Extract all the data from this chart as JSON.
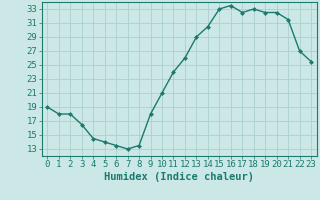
{
  "x": [
    0,
    1,
    2,
    3,
    4,
    5,
    6,
    7,
    8,
    9,
    10,
    11,
    12,
    13,
    14,
    15,
    16,
    17,
    18,
    19,
    20,
    21,
    22,
    23
  ],
  "y": [
    19,
    18,
    18,
    16.5,
    14.5,
    14,
    13.5,
    13,
    13.5,
    18,
    21,
    24,
    26,
    29,
    30.5,
    33,
    33.5,
    32.5,
    33,
    32.5,
    32.5,
    31.5,
    27,
    25.5
  ],
  "line_color": "#1a7a6e",
  "marker_color": "#1a7a6e",
  "bg_color": "#cce8e6",
  "grid_color": "#aacfcd",
  "xlabel": "Humidex (Indice chaleur)",
  "xlim": [
    -0.5,
    23.5
  ],
  "ylim": [
    12,
    34
  ],
  "yticks": [
    13,
    15,
    17,
    19,
    21,
    23,
    25,
    27,
    29,
    31,
    33
  ],
  "xticks": [
    0,
    1,
    2,
    3,
    4,
    5,
    6,
    7,
    8,
    9,
    10,
    11,
    12,
    13,
    14,
    15,
    16,
    17,
    18,
    19,
    20,
    21,
    22,
    23
  ],
  "marker_size": 2.5,
  "line_width": 1.0,
  "tick_fontsize": 6.5,
  "xlabel_fontsize": 7.5
}
